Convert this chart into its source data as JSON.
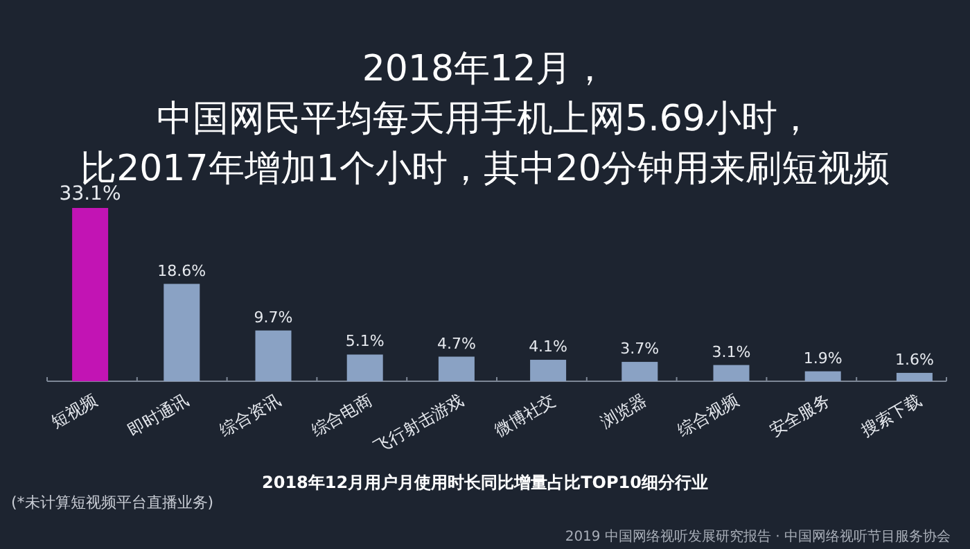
{
  "chart_data": {
    "type": "bar",
    "title": "2018年12月，中国网民平均每天用手机上网5.69小时，比2017年增加1个小时，其中20分钟用来刷短视频",
    "xlabel": "2018年12月用户月使用时长同比增量占比TOP10细分行业",
    "categories": [
      "短视频",
      "即时通讯",
      "综合资讯",
      "综合电商",
      "飞行射击游戏",
      "微博社交",
      "浏览器",
      "综合视频",
      "安全服务",
      "搜索下载"
    ],
    "values": [
      33.1,
      18.6,
      9.7,
      5.1,
      4.7,
      4.1,
      3.7,
      3.1,
      1.9,
      1.6
    ],
    "colors": [
      "#c214b4",
      "#8aa2c4",
      "#8aa2c4",
      "#8aa2c4",
      "#8aa2c4",
      "#8aa2c4",
      "#8aa2c4",
      "#8aa2c4",
      "#8aa2c4",
      "#8aa2c4"
    ],
    "value_labels": [
      "33.1%",
      "18.6%",
      "9.7%",
      "5.1%",
      "4.7%",
      "4.1%",
      "3.7%",
      "3.1%",
      "1.9%",
      "1.6%"
    ],
    "annotations": [
      "(*未计算短视频平台直播业务)",
      "2019 中国网络视听发展研究报告 · 中国网络视听节目服务协会"
    ]
  }
}
